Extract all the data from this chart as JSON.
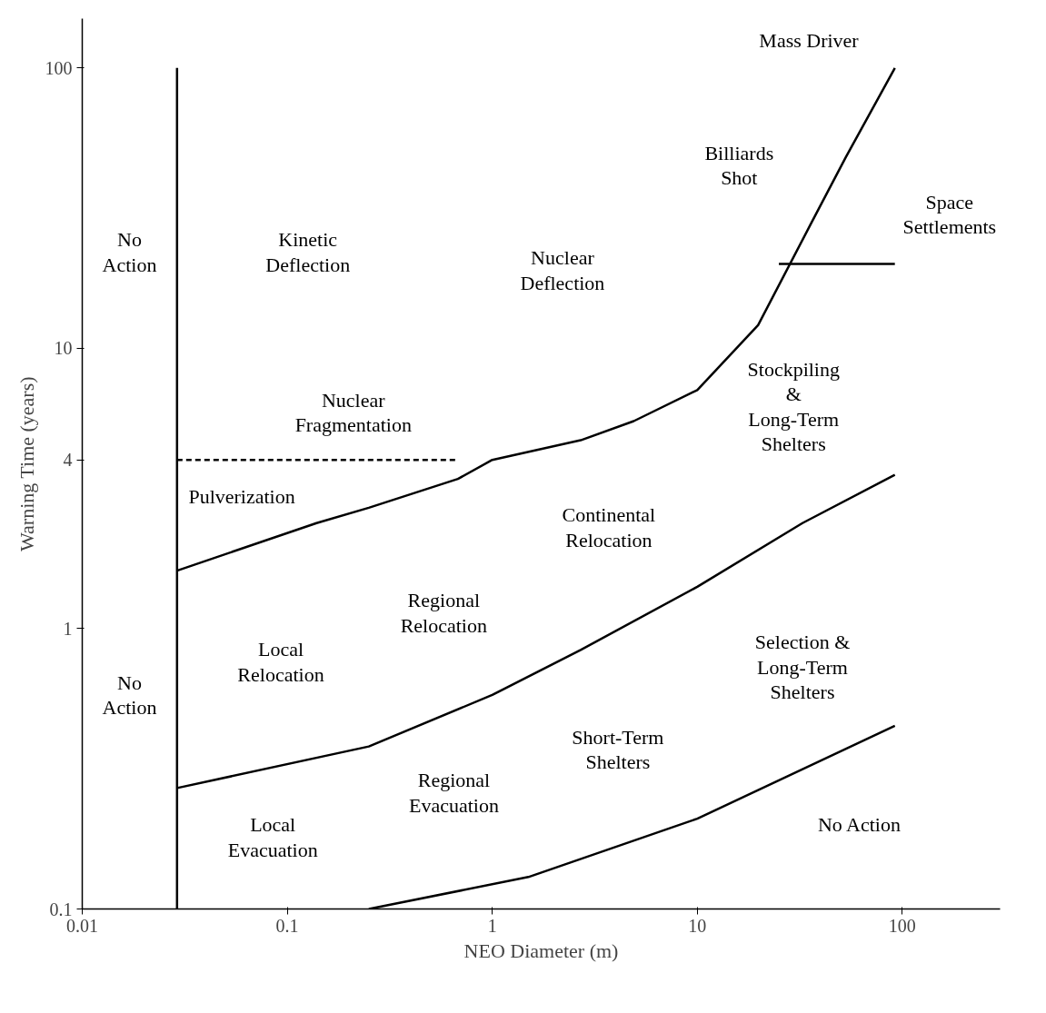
{
  "chart_data": {
    "type": "line",
    "xlabel": "NEO Diameter (m)",
    "ylabel": "Warning Time (years)",
    "log": "xy",
    "xlim": [
      0.01,
      300
    ],
    "ylim": [
      0.1,
      150
    ],
    "xticks": [
      0.01,
      0.1,
      1,
      10,
      100
    ],
    "yticks": [
      0.1,
      1,
      4,
      10,
      100
    ],
    "grid": false,
    "series": [
      {
        "color": "#000000",
        "x": [
          0.029,
          0.139,
          0.25,
          0.68,
          1.0,
          2.7,
          4.9,
          10,
          19.8,
          36,
          53,
          92
        ],
        "values": [
          1.61,
          2.38,
          2.7,
          3.42,
          4,
          4.7,
          5.5,
          7.1,
          12.1,
          28,
          48,
          100
        ]
      },
      {
        "color": "#000000",
        "x": [
          0.029,
          0.25,
          1.0,
          2.7,
          10,
          32.6,
          92
        ],
        "values": [
          0.27,
          0.38,
          0.58,
          0.84,
          1.41,
          2.38,
          3.54
        ]
      },
      {
        "color": "#000000",
        "x": [
          0.25,
          1.5,
          10,
          92
        ],
        "values": [
          0.1,
          0.13,
          0.21,
          0.45
        ]
      },
      {
        "color": "#000000",
        "x": [
          0.029,
          0.029
        ],
        "values": [
          0.1,
          100
        ]
      },
      {
        "color": "#000000",
        "x": [
          25,
          92
        ],
        "values": [
          20,
          20
        ]
      },
      {
        "color": "#000000",
        "line_style": "dashed",
        "x": [
          0.029,
          0.68
        ],
        "values": [
          4,
          4
        ]
      }
    ],
    "annotations": [
      "No\nAction",
      "No\nAction",
      "Kinetic\nDeflection",
      "Nuclear\nDeflection",
      "Billiards\nShot",
      "Mass Driver",
      "Space\nSettlements",
      "Nuclear\nFragmentation",
      "Pulverization",
      "Continental\nRelocation",
      "Stockpiling\n&\nLong-Term\nShelters",
      "Regional\nRelocation",
      "Local\nRelocation",
      "Selection &\nLong-Term\nShelters",
      "Short-Term\nShelters",
      "Regional\nEvacuation",
      "Local\nEvacuation",
      "No Action"
    ]
  }
}
